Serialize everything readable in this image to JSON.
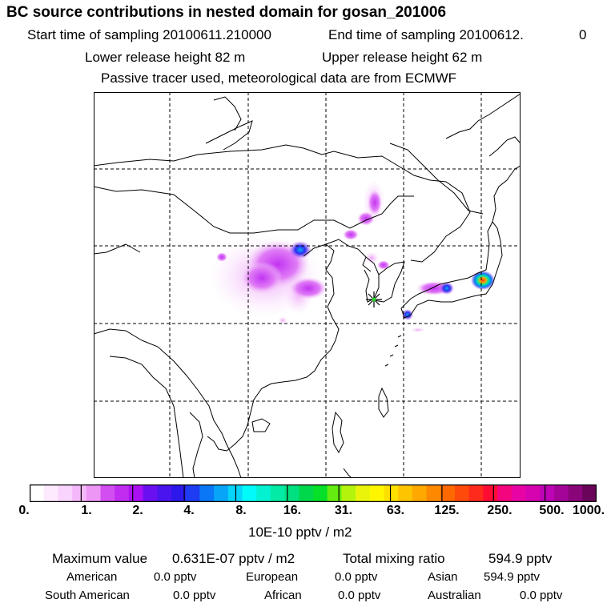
{
  "header": {
    "title": "BC  source contributions in nested domain for gosan_201006",
    "start_label": "Start time of sampling 20100611.210000",
    "end_label": "End time of sampling 20100612.",
    "end_suffix": "0",
    "lower_release": "Lower release height   82 m",
    "upper_release": "Upper release height   62 m",
    "tracer_note": "Passive tracer used, meteorological data are from ECMWF"
  },
  "map": {
    "receptor_marker": "asterisk-marker",
    "grid": "dashed",
    "land_fill": "#ffffff",
    "coast_color": "#000000"
  },
  "colorbar": {
    "colors": [
      "#ffffff",
      "#fdeafe",
      "#f9d4fc",
      "#f4b8fa",
      "#ee96f6",
      "#d24ef0",
      "#c02cf0",
      "#aa10f2",
      "#6a10f0",
      "#4a14ee",
      "#2c18ea",
      "#1e3cf2",
      "#0a78f6",
      "#08a4f8",
      "#06d4fa",
      "#02fafa",
      "#04f2d2",
      "#02eaa4",
      "#00e080",
      "#00d84c",
      "#06e028",
      "#64ec10",
      "#b4f40c",
      "#eaf40a",
      "#fef600",
      "#fee000",
      "#fec400",
      "#fea800",
      "#fe8800",
      "#fe6800",
      "#fe4a0a",
      "#fe2a1c",
      "#fe0c34",
      "#f4047e",
      "#e804a4",
      "#d604b0",
      "#be04b4",
      "#a40498",
      "#8a047a",
      "#6a045a"
    ],
    "tick_labels": [
      "0.",
      "1.",
      "2.",
      "4.",
      "8.",
      "16.",
      "31.",
      "63.",
      "125.",
      "250.",
      "500.",
      "1000."
    ],
    "unit_label": "10E-10 pptv / m2"
  },
  "summary": {
    "max_label": "Maximum value",
    "max_value": "0.631E-07 pptv / m2",
    "total_label": "Total mixing ratio",
    "total_value": "594.9 pptv",
    "regions": [
      {
        "name": "American",
        "value": "0.0 pptv"
      },
      {
        "name": "European",
        "value": "0.0 pptv"
      },
      {
        "name": "Asian",
        "value": "594.9 pptv"
      },
      {
        "name": "South American",
        "value": "0.0 pptv"
      },
      {
        "name": "African",
        "value": "0.0 pptv"
      },
      {
        "name": "Australian",
        "value": "0.0 pptv"
      }
    ]
  }
}
